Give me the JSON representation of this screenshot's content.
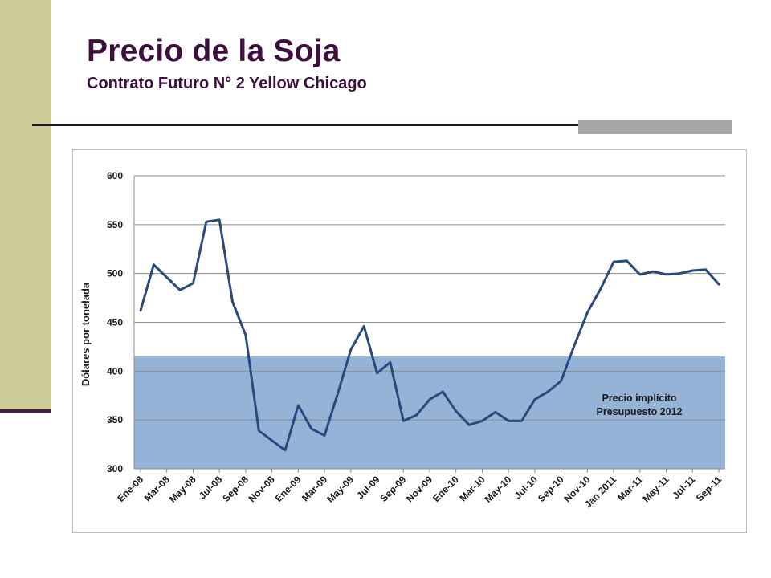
{
  "slide": {
    "title": "Precio de la Soja",
    "subtitle": "Contrato Futuro N° 2 Yellow Chicago"
  },
  "chart_data": {
    "type": "line",
    "ylabel": "Dólares por tonelada",
    "xlabel": "",
    "ylim": [
      300,
      600
    ],
    "yticks": [
      300,
      350,
      400,
      450,
      500,
      550,
      600
    ],
    "grid": true,
    "line_color": "#2a4a7f",
    "band": {
      "label_lines": [
        "Precio implícito",
        "Presupuesto 2012"
      ],
      "y_range": [
        300,
        415
      ],
      "color": "#95b3d7"
    },
    "x_tick_labels": [
      "Ene-08",
      "Mar-08",
      "May-08",
      "Jul-08",
      "Sep-08",
      "Nov-08",
      "Ene-09",
      "Mar-09",
      "May-09",
      "Jul-09",
      "Sep-09",
      "Nov-09",
      "Ene-10",
      "Mar-10",
      "May-10",
      "Jul-10",
      "Sep-10",
      "Nov-10",
      "Jan 2011",
      "Mar-11",
      "May-11",
      "Jul-11",
      "Sep-11"
    ],
    "series": [
      {
        "values": [
          462,
          509,
          496,
          483,
          490,
          553,
          555,
          471,
          437,
          339,
          329,
          319,
          365,
          341,
          334,
          377,
          422,
          446,
          398,
          409,
          349,
          355,
          371,
          379,
          359,
          345,
          349,
          358,
          349,
          349,
          371,
          379,
          390,
          426,
          460,
          484,
          512,
          513,
          499,
          502,
          499,
          500,
          503,
          504,
          489
        ]
      }
    ]
  }
}
